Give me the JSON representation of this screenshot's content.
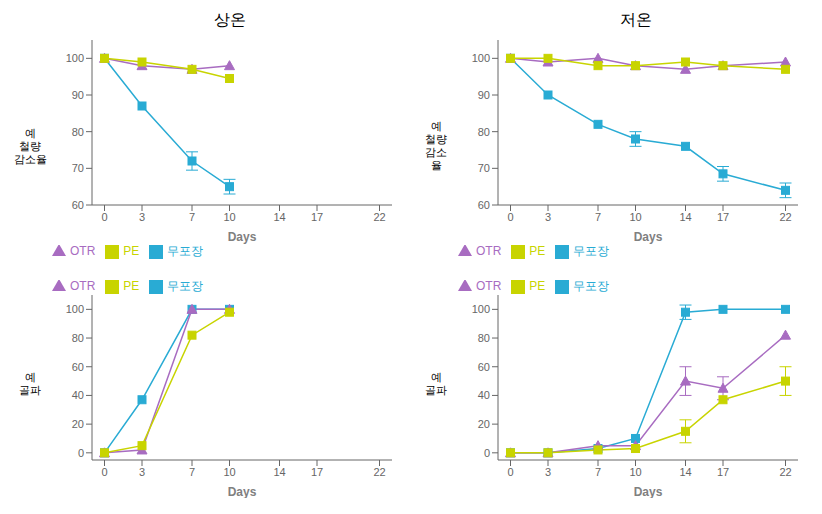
{
  "chart_data": [
    {
      "type": "line",
      "title": "상온",
      "xlabel": "Days",
      "ylabel": "예\n철량\n감소율",
      "x": [
        0,
        3,
        7,
        10
      ],
      "xlim": [
        -1,
        23
      ],
      "xticks": [
        0,
        3,
        7,
        10,
        14,
        17,
        22
      ],
      "ylim": [
        60,
        105
      ],
      "yticks": [
        60,
        70,
        80,
        90,
        100
      ],
      "legend": "lower left",
      "grid": false,
      "series": [
        {
          "name": "무포장",
          "color": "#29ABD4",
          "marker": "square",
          "values": [
            100,
            87,
            72,
            65
          ],
          "errors": [
            0,
            0,
            2.5,
            2
          ]
        },
        {
          "name": "OTR",
          "color": "#A86CC1",
          "marker": "triangle",
          "values": [
            100,
            98,
            97,
            98
          ],
          "errors": [
            0,
            0,
            0,
            0
          ]
        },
        {
          "name": "PE",
          "color": "#C8D400",
          "marker": "square",
          "values": [
            100,
            99,
            97,
            94.5
          ],
          "errors": [
            0,
            0,
            0,
            0
          ]
        }
      ]
    },
    {
      "type": "line",
      "title": "저온",
      "xlabel": "Days",
      "ylabel": "예\n철량\n감소\n율",
      "x": [
        0,
        3,
        7,
        10,
        14,
        17,
        22
      ],
      "xlim": [
        -1,
        23
      ],
      "xticks": [
        0,
        3,
        7,
        10,
        14,
        17,
        22
      ],
      "ylim": [
        60,
        105
      ],
      "yticks": [
        60,
        70,
        80,
        90,
        100
      ],
      "legend": "lower left",
      "grid": false,
      "series": [
        {
          "name": "무포장",
          "color": "#29ABD4",
          "marker": "square",
          "values": [
            100,
            90,
            82,
            78,
            76,
            68.5,
            64
          ],
          "errors": [
            0,
            0,
            0,
            2,
            0,
            2,
            2
          ]
        },
        {
          "name": "OTR",
          "color": "#A86CC1",
          "marker": "triangle",
          "values": [
            100,
            99,
            100,
            98,
            97,
            98,
            99
          ],
          "errors": [
            0,
            0,
            0,
            0,
            0,
            0,
            0
          ]
        },
        {
          "name": "PE",
          "color": "#C8D400",
          "marker": "square",
          "values": [
            100,
            100,
            98,
            98,
            99,
            98,
            97
          ],
          "errors": [
            0,
            0,
            0,
            0,
            0,
            0,
            0
          ]
        }
      ]
    },
    {
      "type": "line",
      "xlabel": "Days",
      "ylabel": "예\n골파",
      "x": [
        0,
        3,
        7,
        10
      ],
      "xlim": [
        -1,
        23
      ],
      "xticks": [
        0,
        3,
        7,
        10,
        14,
        17,
        22
      ],
      "ylim": [
        -5,
        110
      ],
      "yticks": [
        0,
        20,
        40,
        60,
        80,
        100
      ],
      "legend": "upper left",
      "grid": false,
      "series": [
        {
          "name": "무포장",
          "color": "#29ABD4",
          "marker": "square",
          "values": [
            0,
            37,
            100,
            100
          ],
          "errors": [
            0,
            0,
            0,
            0
          ]
        },
        {
          "name": "OTR",
          "color": "#A86CC1",
          "marker": "triangle",
          "values": [
            0,
            2,
            100,
            100
          ],
          "errors": [
            0,
            0,
            0,
            0
          ]
        },
        {
          "name": "PE",
          "color": "#C8D400",
          "marker": "square",
          "values": [
            0,
            5,
            82,
            98
          ],
          "errors": [
            0,
            0,
            0,
            0
          ]
        }
      ]
    },
    {
      "type": "line",
      "xlabel": "Days",
      "ylabel": "예\n골파",
      "x": [
        0,
        3,
        7,
        10,
        14,
        17,
        22
      ],
      "xlim": [
        -1,
        23
      ],
      "xticks": [
        0,
        3,
        7,
        10,
        14,
        17,
        22
      ],
      "ylim": [
        -5,
        110
      ],
      "yticks": [
        0,
        20,
        40,
        60,
        80,
        100
      ],
      "legend": "upper left",
      "grid": false,
      "series": [
        {
          "name": "무포장",
          "color": "#29ABD4",
          "marker": "square",
          "values": [
            0,
            0,
            3,
            10,
            98,
            100,
            100
          ],
          "errors": [
            0,
            0,
            0,
            0,
            5,
            0,
            0
          ]
        },
        {
          "name": "OTR",
          "color": "#A86CC1",
          "marker": "triangle",
          "values": [
            0,
            0,
            5,
            5,
            50,
            45,
            82
          ],
          "errors": [
            0,
            0,
            0,
            0,
            10,
            8,
            0
          ]
        },
        {
          "name": "PE",
          "color": "#C8D400",
          "marker": "square",
          "values": [
            0,
            0,
            2,
            3,
            15,
            37,
            50
          ],
          "errors": [
            0,
            0,
            0,
            0,
            8,
            0,
            10
          ]
        }
      ]
    }
  ]
}
